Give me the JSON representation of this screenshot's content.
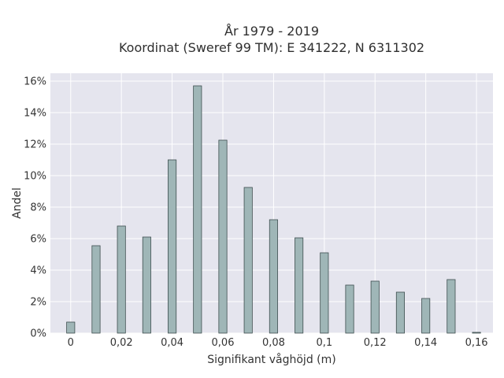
{
  "chart_data": {
    "type": "bar",
    "title": "År 1979 - 2019",
    "subtitle": "Koordinat (Sweref 99 TM): E 341222, N 6311302",
    "xlabel": "Signifikant våghöjd (m)",
    "ylabel": "Andel",
    "x": [
      0,
      0.01,
      0.02,
      0.03,
      0.04,
      0.05,
      0.06,
      0.07,
      0.08,
      0.09,
      0.1,
      0.11,
      0.12,
      0.13,
      0.14,
      0.15,
      0.16
    ],
    "values": [
      0.7,
      5.55,
      6.8,
      6.1,
      11.0,
      15.7,
      12.25,
      9.25,
      7.2,
      6.05,
      5.1,
      3.05,
      3.3,
      2.6,
      2.2,
      3.4,
      0.05
    ],
    "xlim": [
      -0.008,
      0.1665
    ],
    "ylim": [
      0,
      16.5
    ],
    "x_ticks": [
      0,
      0.02,
      0.04,
      0.06,
      0.08,
      0.1,
      0.12,
      0.14,
      0.16
    ],
    "x_tick_labels": [
      "0",
      "0,02",
      "0,04",
      "0,06",
      "0,08",
      "0,1",
      "0,12",
      "0,14",
      "0,16"
    ],
    "y_ticks": [
      0,
      2,
      4,
      6,
      8,
      10,
      12,
      14,
      16
    ],
    "y_tick_labels": [
      "0%",
      "2%",
      "4%",
      "6%",
      "8%",
      "10%",
      "12%",
      "14%",
      "16%"
    ],
    "bar_width": 0.0032,
    "grid": true,
    "colors": {
      "plot_background": "#e5e5ee",
      "grid": "#ffffff",
      "bar_fill": "#9fb6b7",
      "bar_stroke": "#3e4f4f"
    }
  }
}
